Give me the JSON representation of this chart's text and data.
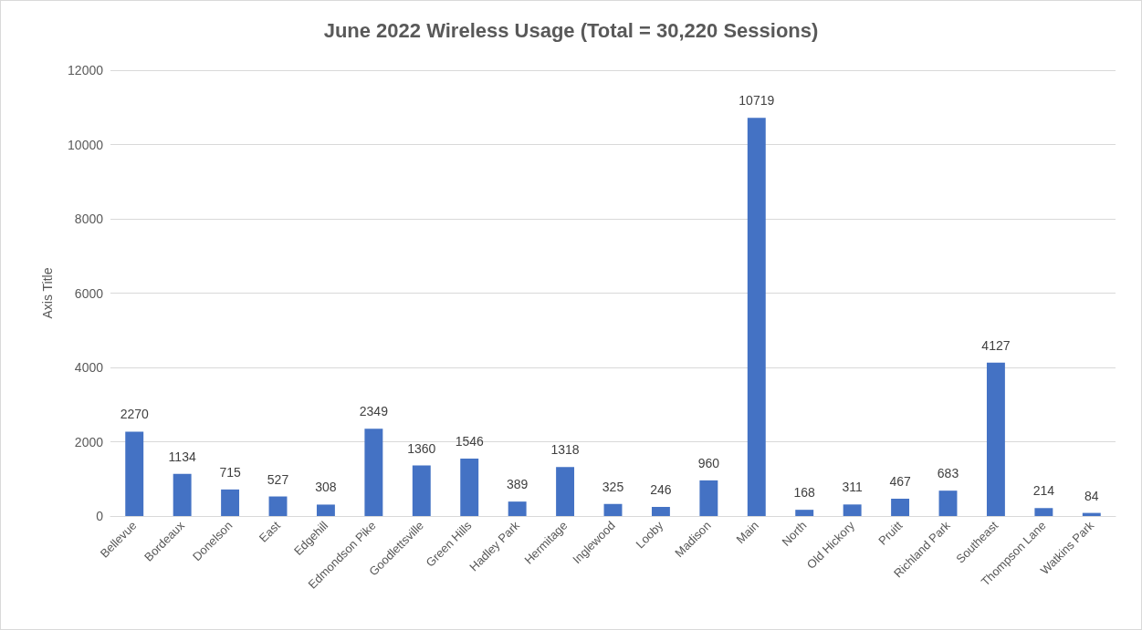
{
  "chart_data": {
    "type": "bar",
    "title": "June 2022 Wireless Usage (Total = 30,220 Sessions)",
    "ylabel": "Axis Title",
    "categories": [
      "Bellevue",
      "Bordeaux",
      "Donelson",
      "East",
      "Edgehill",
      "Edmondson Pike",
      "Goodlettsville",
      "Green Hills",
      "Hadley Park",
      "Hermitage",
      "Inglewood",
      "Looby",
      "Madison",
      "Main",
      "North",
      "Old Hickory",
      "Pruitt",
      "Richland Park",
      "Southeast",
      "Thompson Lane",
      "Watkins Park"
    ],
    "values": [
      2270,
      1134,
      715,
      527,
      308,
      2349,
      1360,
      1546,
      389,
      1318,
      325,
      246,
      960,
      10719,
      168,
      311,
      467,
      683,
      4127,
      214,
      84
    ],
    "color": "#4472c4",
    "ylim": [
      0,
      12000
    ],
    "yticks": [
      0,
      2000,
      4000,
      6000,
      8000,
      10000,
      12000
    ],
    "grid": "y",
    "data_labels": true
  }
}
